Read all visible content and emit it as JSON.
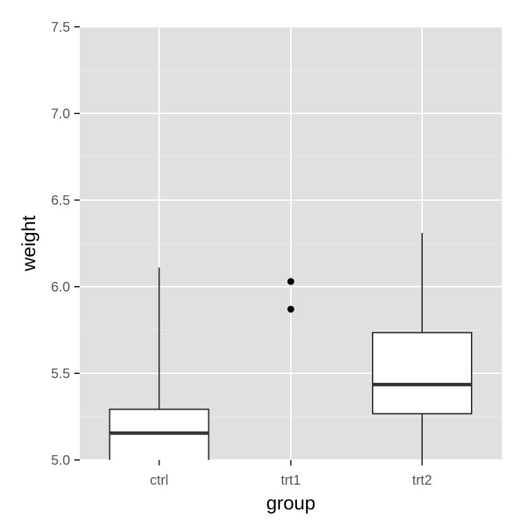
{
  "chart_data": {
    "type": "boxplot",
    "title": "",
    "xlabel": "group",
    "ylabel": "weight",
    "ylim": [
      5.0,
      7.5
    ],
    "yticks": [
      5.0,
      5.5,
      6.0,
      6.5,
      7.0,
      7.5
    ],
    "ytick_labels": [
      "5.0",
      "5.5",
      "6.0",
      "6.5",
      "7.0",
      "7.5"
    ],
    "categories": [
      "ctrl",
      "trt1",
      "trt2"
    ],
    "grid": true,
    "legend": "none",
    "colors": {
      "panel_background": "#e0e0e0",
      "grid_major": "#ffffff",
      "grid_minor": "#ececec",
      "box_fill": "#ffffff",
      "box_stroke": "#333333",
      "tick_label": "#555555",
      "axis_title": "#000000"
    },
    "boxes": [
      {
        "category": "ctrl",
        "lower_whisker": 5.0,
        "q1": 5.0,
        "median": 5.155,
        "q3": 5.292,
        "upper_whisker": 6.11,
        "outliers": []
      },
      {
        "category": "trt1",
        "lower_whisker": null,
        "q1": null,
        "median": null,
        "q3": null,
        "upper_whisker": null,
        "outliers": [
          5.87,
          6.03
        ]
      },
      {
        "category": "trt2",
        "lower_whisker": 5.0,
        "q1": 5.267,
        "median": 5.435,
        "q3": 5.735,
        "upper_whisker": 6.31,
        "outliers": []
      }
    ]
  }
}
